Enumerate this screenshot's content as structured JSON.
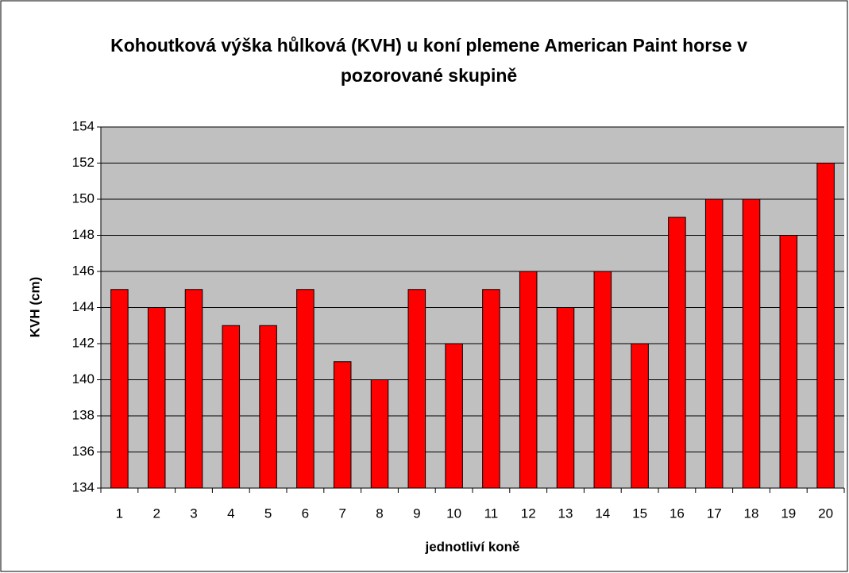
{
  "chart_data": {
    "type": "bar",
    "title": "Kohoutková výška hůlková (KVH) u koní plemene American Paint horse v pozorované skupině",
    "x_label": "jednotliví koně",
    "y_label": "KVH (cm)",
    "categories": [
      1,
      2,
      3,
      4,
      5,
      6,
      7,
      8,
      9,
      10,
      11,
      12,
      13,
      14,
      15,
      16,
      17,
      18,
      19,
      20
    ],
    "values": [
      145,
      144,
      145,
      143,
      143,
      145,
      141,
      140,
      145,
      142,
      145,
      146,
      144,
      146,
      142,
      149,
      150,
      150,
      148,
      152
    ],
    "color": "#ff0000",
    "ylim": [
      134,
      154
    ],
    "yticks": [
      134,
      136,
      138,
      140,
      142,
      144,
      146,
      148,
      150,
      152,
      154
    ],
    "grid": true
  }
}
